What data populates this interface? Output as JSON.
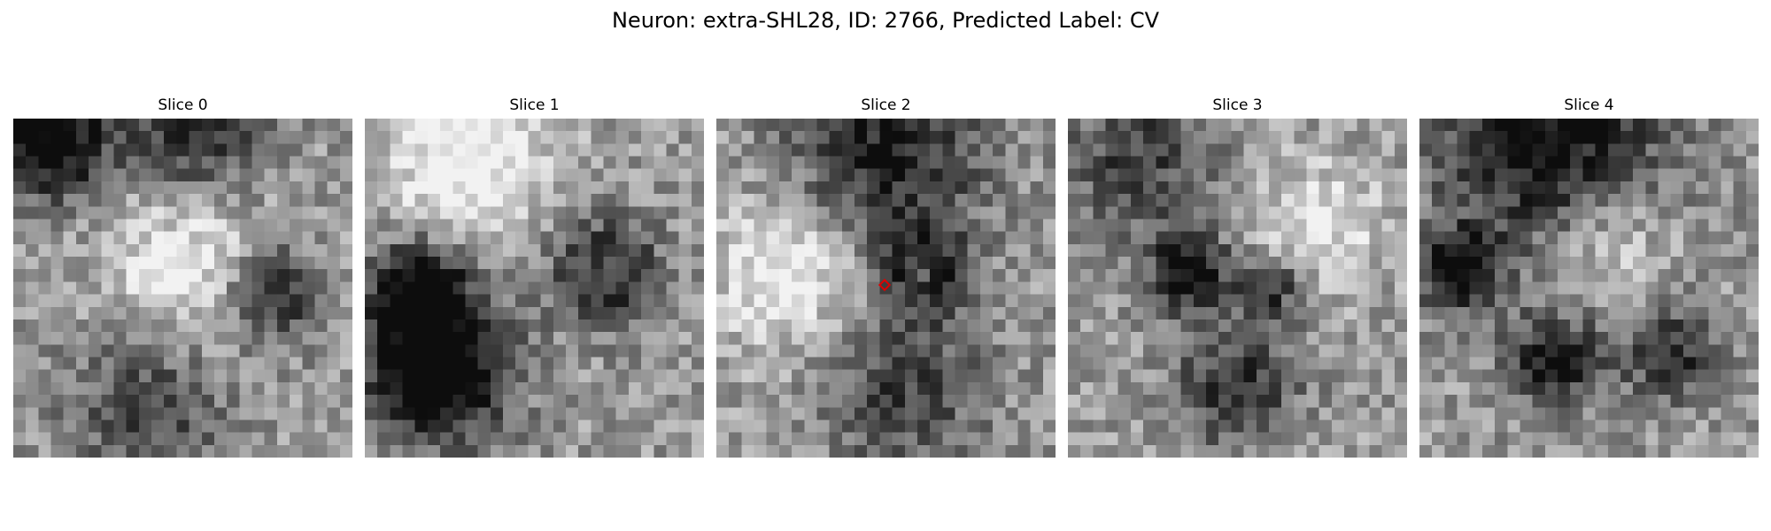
{
  "figure": {
    "title": "Neuron: extra-SHL28, ID: 2766, Predicted Label: CV"
  },
  "panels": [
    {
      "title": "Slice 0"
    },
    {
      "title": "Slice 1"
    },
    {
      "title": "Slice 2"
    },
    {
      "title": "Slice 3"
    },
    {
      "title": "Slice 4"
    }
  ],
  "marker": {
    "panel_index": 2,
    "color": "#e00000",
    "shape": "diamond"
  }
}
